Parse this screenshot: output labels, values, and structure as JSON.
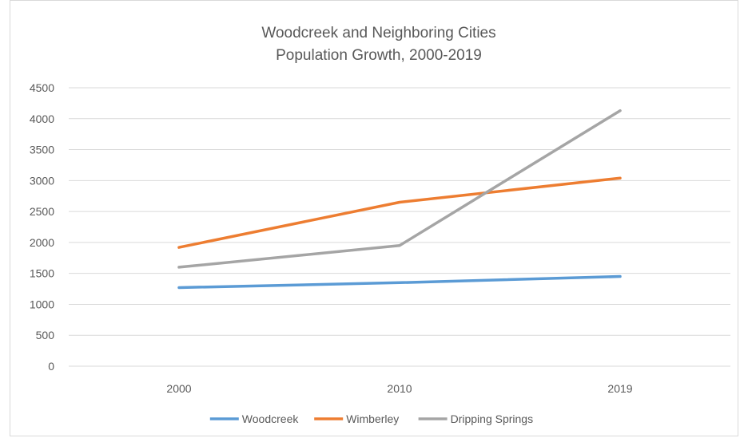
{
  "chart_data": {
    "type": "line",
    "title": "Woodcreek and Neighboring Cities",
    "subtitle": "Population Growth, 2000-2019",
    "xlabel": "",
    "ylabel": "",
    "categories": [
      "2000",
      "2010",
      "2019"
    ],
    "ylim": [
      0,
      4500
    ],
    "yticks": [
      0,
      500,
      1000,
      1500,
      2000,
      2500,
      3000,
      3500,
      4000,
      4500
    ],
    "grid": true,
    "legend_position": "bottom",
    "series": [
      {
        "name": "Woodcreek",
        "values": [
          1270,
          1350,
          1450
        ],
        "color": "#5b9bd5"
      },
      {
        "name": "Wimberley",
        "values": [
          1920,
          2650,
          3040
        ],
        "color": "#ed7d31"
      },
      {
        "name": "Dripping Springs",
        "values": [
          1600,
          1950,
          4130
        ],
        "color": "#a5a5a5"
      }
    ]
  }
}
